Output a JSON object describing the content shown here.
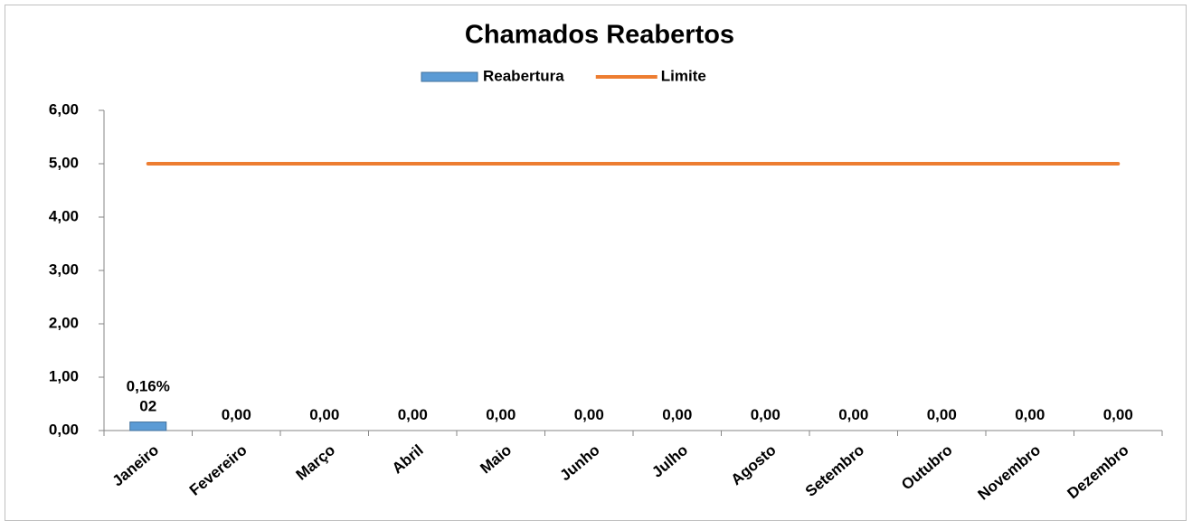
{
  "chart_data": {
    "type": "bar_line",
    "title": "Chamados Reabertos",
    "categories": [
      "Janeiro",
      "Fevereiro",
      "Março",
      "Abril",
      "Maio",
      "Junho",
      "Julho",
      "Agosto",
      "Setembro",
      "Outubro",
      "Novembro",
      "Dezembro"
    ],
    "series": [
      {
        "name": "Reabertura",
        "type": "bar",
        "color": "#5b9bd5",
        "values": [
          0.16,
          0,
          0,
          0,
          0,
          0,
          0,
          0,
          0,
          0,
          0,
          0
        ],
        "value_labels": [
          "0,16%\n02",
          "0,00",
          "0,00",
          "0,00",
          "0,00",
          "0,00",
          "0,00",
          "0,00",
          "0,00",
          "0,00",
          "0,00",
          "0,00"
        ]
      },
      {
        "name": "Limite",
        "type": "line",
        "color": "#ed7d31",
        "values": [
          5,
          5,
          5,
          5,
          5,
          5,
          5,
          5,
          5,
          5,
          5,
          5
        ]
      }
    ],
    "ylim": [
      0,
      6
    ],
    "yticks": [
      {
        "value": 0,
        "label": "0,00"
      },
      {
        "value": 1,
        "label": "1,00"
      },
      {
        "value": 2,
        "label": "2,00"
      },
      {
        "value": 3,
        "label": "3,00"
      },
      {
        "value": 4,
        "label": "4,00"
      },
      {
        "value": 5,
        "label": "5,00"
      },
      {
        "value": 6,
        "label": "6,00"
      }
    ],
    "legend": "top",
    "grid": false
  }
}
